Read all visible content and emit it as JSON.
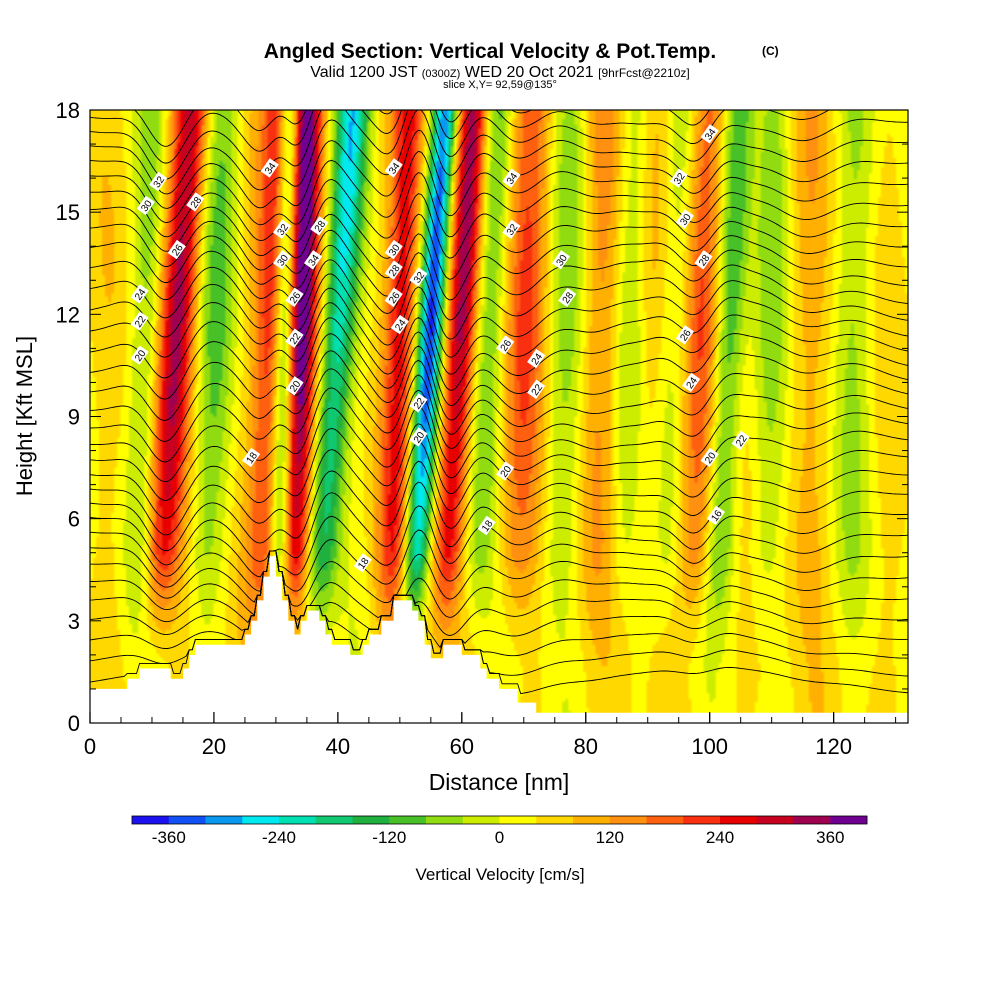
{
  "chart_data": {
    "type": "heatmap",
    "title": "Angled Section: Vertical Velocity & Pot.Temp.",
    "title_mark": "(C)",
    "subtitle_valid": "Valid 1200 JST",
    "subtitle_utc": "(0300Z)",
    "subtitle_date": "WED 20 Oct 2021",
    "subtitle_fcst": "[9hrFcst@2210z]",
    "slice_label": "slice X,Y= 92,59@135°",
    "xlabel": "Distance [nm]",
    "ylabel": "Height [Kft MSL]",
    "xlim": [
      0,
      132
    ],
    "ylim": [
      0,
      18
    ],
    "x_ticks": [
      0,
      20,
      40,
      60,
      80,
      100,
      120
    ],
    "y_ticks": [
      0,
      3,
      6,
      9,
      12,
      15,
      18
    ],
    "grid": false,
    "colorbar": {
      "label": "Vertical Velocity [cm/s]",
      "min": -400,
      "max": 400,
      "step": 40,
      "tick_values": [
        -360,
        -240,
        -120,
        0,
        120,
        240,
        360
      ],
      "tick_labels": [
        "-360",
        "-240",
        "-120",
        "0",
        "120",
        "240",
        "360"
      ],
      "colors": [
        "#1a10f0",
        "#1050f5",
        "#0898f0",
        "#00e8f0",
        "#00e0b0",
        "#10c870",
        "#20b040",
        "#48c028",
        "#90dc10",
        "#ccec00",
        "#ffff00",
        "#ffd800",
        "#ffb000",
        "#ff9010",
        "#ff6010",
        "#f83010",
        "#e80000",
        "#c80020",
        "#a00050",
        "#700090"
      ]
    },
    "updrafts": [
      {
        "x": 12,
        "w": 2.8,
        "amp": 280,
        "tilt": 0.6
      },
      {
        "x": 28,
        "w": 2.5,
        "amp": 200,
        "tilt": 0.3
      },
      {
        "x": 33,
        "w": 2.4,
        "amp": 420,
        "tilt": 0.25
      },
      {
        "x": 49,
        "w": 2.5,
        "amp": 220,
        "tilt": 0.35
      },
      {
        "x": 58,
        "w": 2.4,
        "amp": 280,
        "tilt": 0.55
      },
      {
        "x": 69,
        "w": 3.5,
        "amp": 150,
        "tilt": 0.3
      },
      {
        "x": 82,
        "w": 4.0,
        "amp": 90,
        "tilt": 0.1
      },
      {
        "x": 98,
        "w": 2.8,
        "amp": 180,
        "tilt": 0.25
      },
      {
        "x": 90,
        "w": 3.5,
        "amp": 80,
        "tilt": 0.1
      },
      {
        "x": 115,
        "w": 4.0,
        "amp": 50,
        "tilt": 0.05
      }
    ],
    "downdrafts": [
      {
        "x": 8,
        "w": 2.5,
        "amp": -80,
        "tilt": 0.3
      },
      {
        "x": 19,
        "w": 3.0,
        "amp": -110,
        "tilt": 0.4
      },
      {
        "x": 31,
        "w": 1.8,
        "amp": -260,
        "tilt": 0.2
      },
      {
        "x": 38,
        "w": 2.6,
        "amp": -280,
        "tilt": 0.6
      },
      {
        "x": 53,
        "w": 2.0,
        "amp": -380,
        "tilt": 0.6
      },
      {
        "x": 63,
        "w": 2.6,
        "amp": -120,
        "tilt": 0.4
      },
      {
        "x": 76,
        "w": 3.5,
        "amp": -90,
        "tilt": 0.3
      },
      {
        "x": 86,
        "w": 3.0,
        "amp": -100,
        "tilt": 0.3
      },
      {
        "x": 93,
        "w": 2.8,
        "amp": -110,
        "tilt": 0.3
      },
      {
        "x": 102,
        "w": 2.5,
        "amp": -160,
        "tilt": 0.4
      },
      {
        "x": 109,
        "w": 3.0,
        "amp": -90,
        "tilt": 0.2
      },
      {
        "x": 123,
        "w": 3.5,
        "amp": -70,
        "tilt": 0.1
      }
    ],
    "terrain": [
      [
        0,
        1.0
      ],
      [
        6,
        1.0
      ],
      [
        6,
        1.3
      ],
      [
        8,
        1.3
      ],
      [
        8,
        1.6
      ],
      [
        13,
        1.6
      ],
      [
        13,
        1.3
      ],
      [
        15,
        1.3
      ],
      [
        15,
        1.6
      ],
      [
        16,
        1.6
      ],
      [
        16,
        2.0
      ],
      [
        17,
        2.0
      ],
      [
        17,
        2.3
      ],
      [
        25,
        2.3
      ],
      [
        25,
        2.6
      ],
      [
        26,
        2.6
      ],
      [
        26,
        3.0
      ],
      [
        27,
        3.0
      ],
      [
        27,
        3.6
      ],
      [
        28,
        3.6
      ],
      [
        28,
        4.3
      ],
      [
        29,
        4.3
      ],
      [
        29,
        4.9
      ],
      [
        30,
        4.9
      ],
      [
        30,
        4.3
      ],
      [
        31,
        4.3
      ],
      [
        31,
        3.6
      ],
      [
        32,
        3.6
      ],
      [
        32,
        3.0
      ],
      [
        33,
        3.0
      ],
      [
        33,
        2.6
      ],
      [
        34,
        2.6
      ],
      [
        34,
        3.0
      ],
      [
        35,
        3.0
      ],
      [
        35,
        3.3
      ],
      [
        37,
        3.3
      ],
      [
        37,
        3.0
      ],
      [
        38,
        3.0
      ],
      [
        38,
        2.6
      ],
      [
        39,
        2.6
      ],
      [
        39,
        2.3
      ],
      [
        42,
        2.3
      ],
      [
        42,
        2.0
      ],
      [
        44,
        2.0
      ],
      [
        44,
        2.3
      ],
      [
        45,
        2.3
      ],
      [
        45,
        2.6
      ],
      [
        47,
        2.6
      ],
      [
        47,
        3.0
      ],
      [
        49,
        3.0
      ],
      [
        49,
        3.6
      ],
      [
        52,
        3.6
      ],
      [
        52,
        3.3
      ],
      [
        53,
        3.3
      ],
      [
        53,
        3.0
      ],
      [
        54,
        3.0
      ],
      [
        54,
        2.3
      ],
      [
        55,
        2.3
      ],
      [
        55,
        1.9
      ],
      [
        57,
        1.9
      ],
      [
        57,
        2.3
      ],
      [
        60,
        2.3
      ],
      [
        60,
        2.0
      ],
      [
        63,
        2.0
      ],
      [
        63,
        1.6
      ],
      [
        64,
        1.6
      ],
      [
        64,
        1.3
      ],
      [
        66,
        1.3
      ],
      [
        66,
        1.0
      ],
      [
        69,
        1.0
      ],
      [
        69,
        0.6
      ],
      [
        72,
        0.6
      ],
      [
        72,
        0.3
      ],
      [
        132,
        0.3
      ],
      [
        132,
        0
      ],
      [
        0,
        0
      ]
    ],
    "theta_levels": [
      16,
      18,
      20,
      22,
      24,
      26,
      28,
      30,
      32,
      34
    ],
    "contour_labels": [
      {
        "text": "32",
        "x": 11,
        "y": 15.9
      },
      {
        "text": "30",
        "x": 9,
        "y": 15.2
      },
      {
        "text": "28",
        "x": 17,
        "y": 15.3
      },
      {
        "text": "26",
        "x": 14,
        "y": 13.9
      },
      {
        "text": "24",
        "x": 8,
        "y": 12.6
      },
      {
        "text": "22",
        "x": 8,
        "y": 11.8
      },
      {
        "text": "20",
        "x": 8,
        "y": 10.8
      },
      {
        "text": "34",
        "x": 29,
        "y": 16.3
      },
      {
        "text": "32",
        "x": 31,
        "y": 14.5
      },
      {
        "text": "30",
        "x": 31,
        "y": 13.6
      },
      {
        "text": "28",
        "x": 37,
        "y": 14.6
      },
      {
        "text": "34",
        "x": 36,
        "y": 13.6
      },
      {
        "text": "26",
        "x": 33,
        "y": 12.5
      },
      {
        "text": "22",
        "x": 33,
        "y": 11.3
      },
      {
        "text": "20",
        "x": 33,
        "y": 9.9
      },
      {
        "text": "18",
        "x": 26,
        "y": 7.8
      },
      {
        "text": "34",
        "x": 49,
        "y": 16.3
      },
      {
        "text": "30",
        "x": 49,
        "y": 13.9
      },
      {
        "text": "28",
        "x": 49,
        "y": 13.3
      },
      {
        "text": "26",
        "x": 49,
        "y": 12.5
      },
      {
        "text": "32",
        "x": 53,
        "y": 13.1
      },
      {
        "text": "24",
        "x": 50,
        "y": 11.7
      },
      {
        "text": "22",
        "x": 53,
        "y": 9.4
      },
      {
        "text": "20",
        "x": 53,
        "y": 8.4
      },
      {
        "text": "18",
        "x": 44,
        "y": 4.7
      },
      {
        "text": "34",
        "x": 68,
        "y": 16.0
      },
      {
        "text": "32",
        "x": 68,
        "y": 14.5
      },
      {
        "text": "30",
        "x": 76,
        "y": 13.6
      },
      {
        "text": "28",
        "x": 77,
        "y": 12.5
      },
      {
        "text": "26",
        "x": 67,
        "y": 11.1
      },
      {
        "text": "24",
        "x": 72,
        "y": 10.7
      },
      {
        "text": "22",
        "x": 72,
        "y": 9.8
      },
      {
        "text": "20",
        "x": 67,
        "y": 7.4
      },
      {
        "text": "18",
        "x": 64,
        "y": 5.8
      },
      {
        "text": "34",
        "x": 100,
        "y": 17.3
      },
      {
        "text": "32",
        "x": 95,
        "y": 16.0
      },
      {
        "text": "30",
        "x": 96,
        "y": 14.8
      },
      {
        "text": "28",
        "x": 99,
        "y": 13.6
      },
      {
        "text": "26",
        "x": 96,
        "y": 11.4
      },
      {
        "text": "24",
        "x": 97,
        "y": 10.0
      },
      {
        "text": "22",
        "x": 105,
        "y": 8.3
      },
      {
        "text": "20",
        "x": 100,
        "y": 7.8
      },
      {
        "text": "16",
        "x": 101,
        "y": 6.1
      }
    ]
  }
}
